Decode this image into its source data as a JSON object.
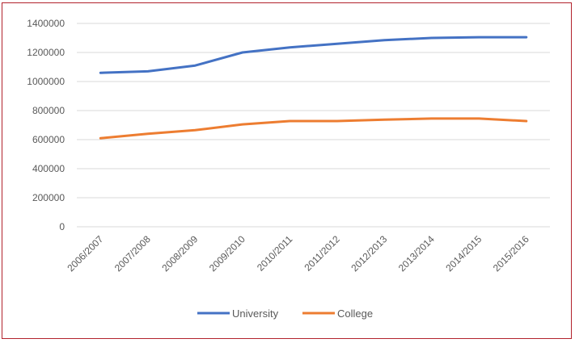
{
  "chart_data": {
    "type": "line",
    "title": "",
    "xlabel": "",
    "ylabel": "",
    "categories": [
      "2006/2007",
      "2007/2008",
      "2008/2009",
      "2009/2010",
      "2010/2011",
      "2011/2012",
      "2012/2013",
      "2013/2014",
      "2014/2015",
      "2015/2016"
    ],
    "ylim": [
      0,
      1400000
    ],
    "yticks": [
      0,
      200000,
      400000,
      600000,
      800000,
      1000000,
      1200000,
      1400000
    ],
    "ytick_labels": [
      "0",
      "200000",
      "400000",
      "600000",
      "800000",
      "1000000",
      "1200000",
      "1400000"
    ],
    "grid": true,
    "legend_position": "bottom",
    "series": [
      {
        "name": "University",
        "color": "#4472c4",
        "values": [
          1060000,
          1070000,
          1110000,
          1200000,
          1235000,
          1260000,
          1285000,
          1300000,
          1305000,
          1305000
        ]
      },
      {
        "name": "College",
        "color": "#ed7d31",
        "values": [
          610000,
          640000,
          665000,
          705000,
          728000,
          728000,
          737000,
          745000,
          745000,
          728000
        ]
      }
    ]
  },
  "colors": {
    "border": "#b2222c",
    "grid": "#d9d9d9",
    "text": "#595959"
  }
}
